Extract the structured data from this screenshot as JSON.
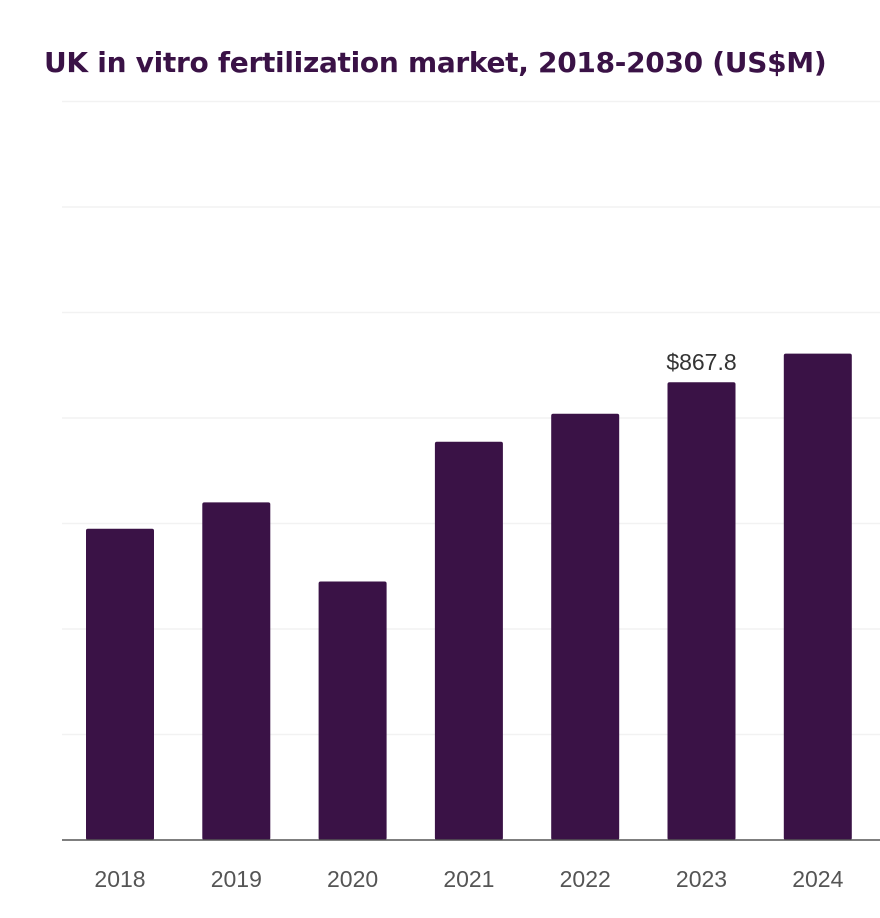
{
  "title": "UK in vitro fertilization market, 2018-2030 (US$M)",
  "colors": {
    "bar": "#3a1246",
    "title": "#3a1246",
    "grid": "#f2f2f2",
    "axis": "#555555"
  },
  "chart_data": {
    "type": "bar",
    "title": "UK in vitro fertilization market, 2018-2030 (US$M)",
    "xlabel": "",
    "ylabel": "",
    "categories": [
      "2018",
      "2019",
      "2020",
      "2021",
      "2022",
      "2023",
      "2024"
    ],
    "values": [
      590.0,
      640.0,
      490.0,
      755.0,
      808.0,
      867.8,
      922.0
    ],
    "ylim": [
      0,
      1400
    ],
    "grid": true,
    "gridlines": [
      0,
      200,
      400,
      600,
      800,
      1000,
      1200,
      1400
    ],
    "data_labels": [
      {
        "category": "2023",
        "text": "$867.8"
      }
    ],
    "legend": null
  }
}
